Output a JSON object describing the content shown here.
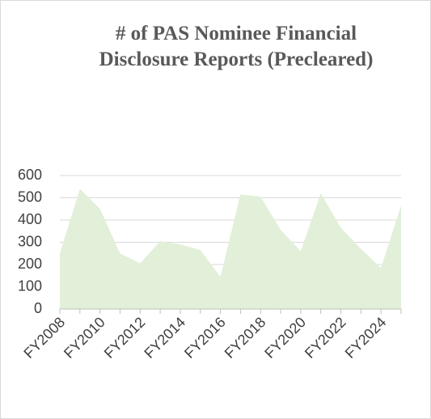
{
  "chart_data": {
    "type": "area",
    "title": "# of PAS Nominee Financial Disclosure Reports (Precleared)",
    "categories": [
      "FY2008",
      null,
      "FY2010",
      null,
      "FY2012",
      null,
      "FY2014",
      null,
      "FY2016",
      null,
      "FY2018",
      null,
      "FY2020",
      null,
      "FY2022",
      null,
      "FY2024",
      null
    ],
    "values": [
      250,
      540,
      450,
      250,
      205,
      305,
      290,
      265,
      145,
      515,
      505,
      355,
      260,
      520,
      365,
      270,
      185,
      465
    ],
    "color": "#e2efd9",
    "ylim": [
      0,
      600
    ],
    "yticks": [
      0,
      100,
      200,
      300,
      400,
      500,
      600
    ],
    "grid": true
  }
}
